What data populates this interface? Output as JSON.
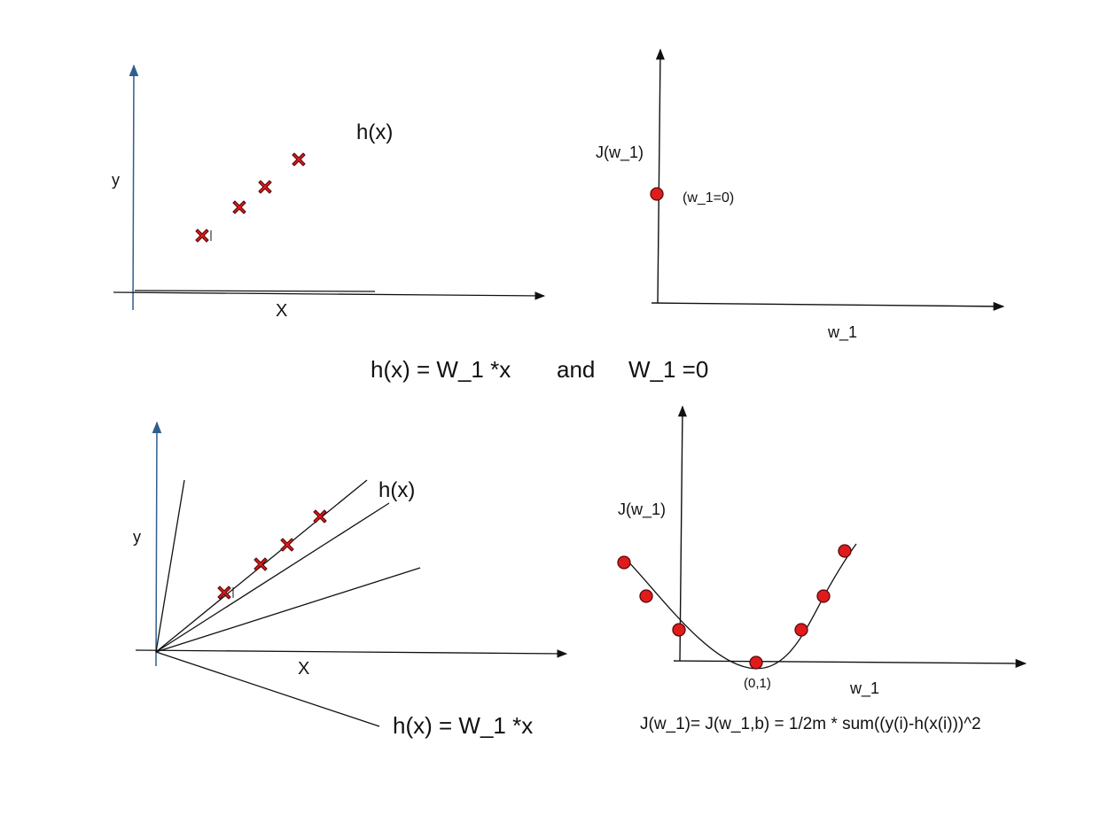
{
  "colors": {
    "background": "#ffffff",
    "line": "#111111",
    "axis_blue": "#2f5f8f",
    "marker_fill": "#e01b1b",
    "marker_stroke": "#5a0a0a"
  },
  "panel_top_left": {
    "y_label": "y",
    "x_label": "X",
    "hypothesis_label": "h(x)"
  },
  "panel_top_right": {
    "y_label": "J(w_1)",
    "x_label": "w_1",
    "point_label": "(w_1=0)"
  },
  "middle_caption": {
    "part1": "h(x) = W_1 *x",
    "connector": "and",
    "part2": "W_1 =0"
  },
  "panel_bottom_left": {
    "y_label": "y",
    "x_label": "X",
    "hypothesis_label": "h(x)",
    "formula_label": "h(x) = W_1 *x"
  },
  "panel_bottom_right": {
    "y_label": "J(w_1)",
    "x_label": "w_1",
    "min_label": "(0,1)",
    "cost_formula": "J(w_1)= J(w_1,b) = 1/2m * sum((y(i)-h(x(i)))^2"
  }
}
